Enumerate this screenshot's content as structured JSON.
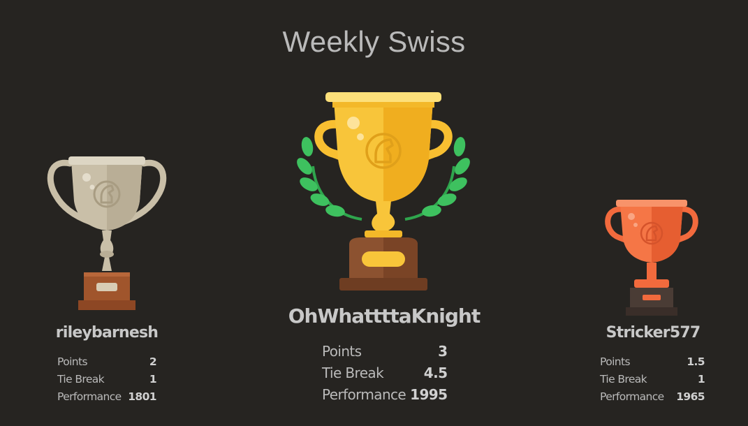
{
  "title": "Weekly Swiss",
  "podium": {
    "first": {
      "name": "OhWhattttaKnight",
      "stats": [
        {
          "label": "Points",
          "value": "3"
        },
        {
          "label": "Tie Break",
          "value": "4.5"
        },
        {
          "label": "Performance",
          "value": "1995"
        }
      ],
      "trophy": "gold-trophy-icon"
    },
    "second": {
      "name": "rileybarnesh",
      "stats": [
        {
          "label": "Points",
          "value": "2"
        },
        {
          "label": "Tie Break",
          "value": "1"
        },
        {
          "label": "Performance",
          "value": "1801"
        }
      ],
      "trophy": "silver-trophy-icon"
    },
    "third": {
      "name": "Stricker577",
      "stats": [
        {
          "label": "Points",
          "value": "1.5"
        },
        {
          "label": "Tie Break",
          "value": "1"
        },
        {
          "label": "Performance",
          "value": "1965"
        }
      ],
      "trophy": "bronze-trophy-icon"
    }
  },
  "colors": {
    "background": "#262421",
    "gold": "#f8bf31",
    "silver": "#c9bfa8",
    "bronze": "#f26a3d",
    "laurel": "#3ec15f"
  }
}
